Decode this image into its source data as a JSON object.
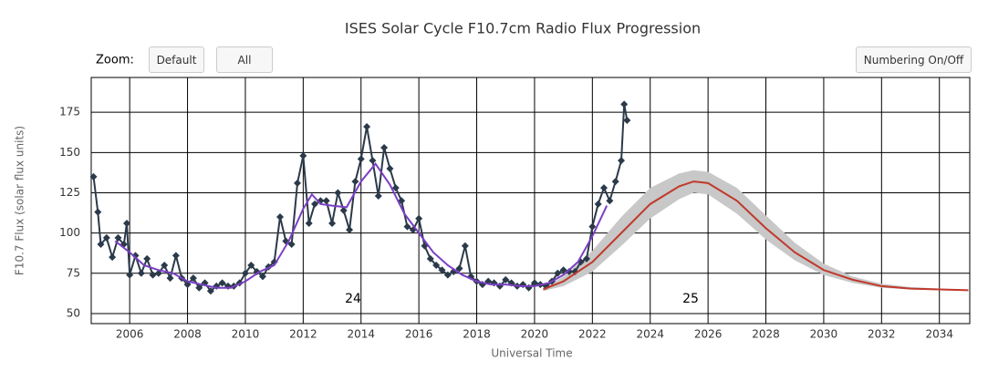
{
  "chart_data": {
    "type": "line",
    "title": "ISES Solar Cycle F10.7cm Radio Flux Progression",
    "zoom_label": "Zoom:",
    "buttons": [
      "Default",
      "All",
      "Numbering On/Off"
    ],
    "x_label": "Universal Time",
    "y_label": "F10.7 Flux (solar flux units)",
    "annotations": [
      "24",
      "25"
    ],
    "xlim": [
      2004.67,
      2035.05
    ],
    "ylim": [
      43.75,
      196.6
    ],
    "xticks": [
      2006,
      2008,
      2010,
      2012,
      2014,
      2016,
      2018,
      2020,
      2022,
      2024,
      2026,
      2028,
      2030,
      2032,
      2034
    ],
    "yticks": [
      50,
      75,
      100,
      125,
      150,
      175
    ],
    "grid": true,
    "band": {
      "color": "#c8c8c8",
      "x": [
        2020.3,
        2021,
        2022,
        2023,
        2024,
        2025,
        2025.5,
        2026,
        2027,
        2028,
        2029,
        2030,
        2031,
        2032,
        2033,
        2034,
        2035
      ],
      "low": [
        64,
        67,
        76,
        92,
        109,
        121,
        125,
        124,
        112,
        96,
        83,
        74,
        69,
        66,
        65,
        64.5,
        64
      ],
      "high": [
        66,
        73,
        89,
        110,
        128,
        137,
        139,
        138,
        128,
        111,
        94,
        81,
        73,
        68.5,
        66.5,
        65.5,
        65
      ]
    },
    "series": [
      {
        "color": "#2b3a4a",
        "marker": "diamond",
        "x": [
          2004.75,
          2004.9,
          2005.0,
          2005.2,
          2005.4,
          2005.6,
          2005.8,
          2005.9,
          2006.0,
          2006.2,
          2006.4,
          2006.6,
          2006.8,
          2007.0,
          2007.2,
          2007.4,
          2007.6,
          2007.8,
          2008.0,
          2008.2,
          2008.4,
          2008.6,
          2008.8,
          2009.0,
          2009.2,
          2009.4,
          2009.6,
          2009.8,
          2010.0,
          2010.2,
          2010.4,
          2010.6,
          2010.8,
          2011.0,
          2011.2,
          2011.4,
          2011.6,
          2011.8,
          2012.0,
          2012.2,
          2012.4,
          2012.6,
          2012.8,
          2013.0,
          2013.2,
          2013.4,
          2013.6,
          2013.8,
          2014.0,
          2014.2,
          2014.4,
          2014.6,
          2014.8,
          2015.0,
          2015.2,
          2015.4,
          2015.6,
          2015.8,
          2016.0,
          2016.2,
          2016.4,
          2016.6,
          2016.8,
          2017.0,
          2017.2,
          2017.4,
          2017.6,
          2017.8,
          2018.0,
          2018.2,
          2018.4,
          2018.6,
          2018.8,
          2019.0,
          2019.2,
          2019.4,
          2019.6,
          2019.8,
          2020.0,
          2020.2,
          2020.4,
          2020.6,
          2020.8,
          2021.0,
          2021.2,
          2021.4,
          2021.6,
          2021.8,
          2022.0,
          2022.2,
          2022.4,
          2022.6,
          2022.8,
          2023.0,
          2023.1,
          2023.2
        ],
        "values": [
          135,
          113,
          93,
          97,
          85,
          97,
          93,
          106,
          74,
          86,
          75,
          84,
          74,
          75,
          80,
          72,
          86,
          72,
          68,
          72,
          66,
          69,
          64,
          67,
          69,
          67,
          67,
          69,
          75,
          80,
          76,
          73,
          79,
          82,
          110,
          95,
          93,
          131,
          148,
          106,
          118,
          120,
          120,
          106,
          125,
          114,
          102,
          132,
          146,
          166,
          145,
          123,
          153,
          140,
          128,
          120,
          104,
          102,
          109,
          92,
          84,
          80,
          77,
          74,
          76,
          78,
          92,
          73,
          70,
          68,
          70,
          69,
          67,
          71,
          69,
          67,
          68,
          66,
          69,
          68,
          67,
          70,
          75,
          77,
          76,
          76,
          82,
          84,
          104,
          118,
          128,
          120,
          132,
          145,
          180,
          170
        ]
      },
      {
        "color": "#7b3fc4",
        "x": [
          2005.5,
          2006,
          2006.5,
          2007,
          2007.5,
          2008,
          2008.5,
          2009,
          2009.5,
          2010,
          2010.5,
          2011,
          2011.5,
          2012,
          2012.3,
          2012.6,
          2013,
          2013.5,
          2014,
          2014.5,
          2015,
          2015.5,
          2016,
          2016.5,
          2017,
          2017.5,
          2018,
          2018.5,
          2019,
          2019.5,
          2020,
          2020.5,
          2021,
          2021.5,
          2022,
          2022.5
        ],
        "values": [
          95,
          88,
          80,
          77,
          75,
          70,
          68,
          66,
          66,
          70,
          76,
          80,
          95,
          115,
          124,
          118,
          117,
          116,
          132,
          143,
          130,
          112,
          100,
          88,
          80,
          74,
          70,
          68,
          68,
          67,
          67,
          69,
          74,
          82,
          98,
          117
        ]
      },
      {
        "color": "#c0392b",
        "x": [
          2020.3,
          2021,
          2022,
          2023,
          2024,
          2025,
          2025.5,
          2026,
          2027,
          2028,
          2029,
          2030,
          2031,
          2032,
          2033,
          2034,
          2035
        ],
        "values": [
          65,
          70,
          82,
          100,
          118,
          129,
          132,
          131,
          120,
          103,
          88,
          77,
          71,
          67,
          65.5,
          65,
          64.5
        ]
      }
    ]
  }
}
